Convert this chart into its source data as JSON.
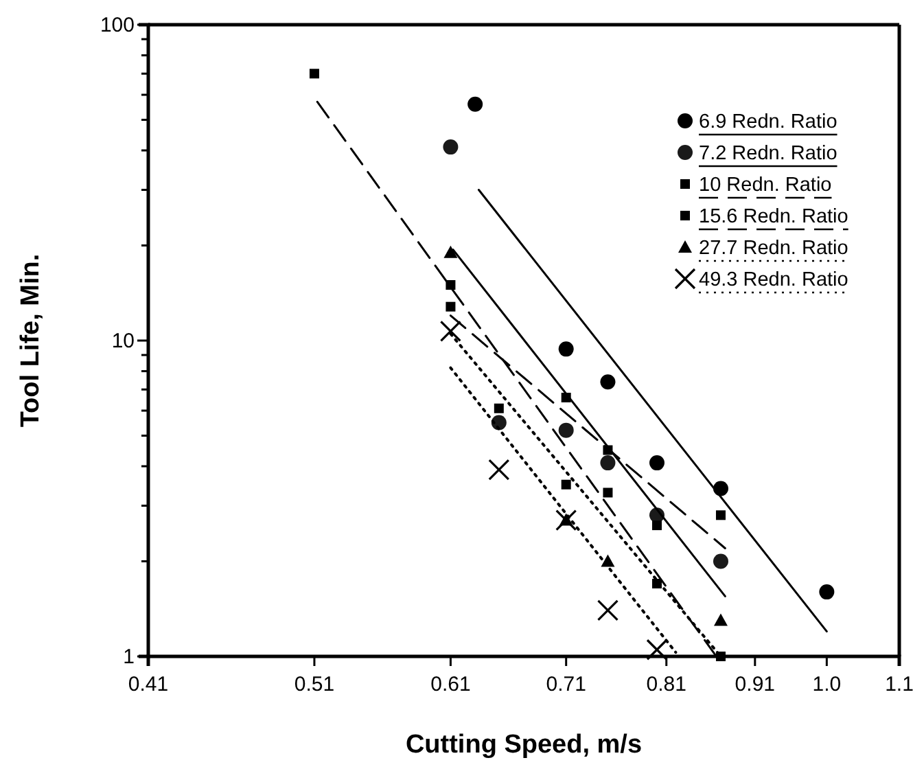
{
  "chart_data": {
    "type": "scatter",
    "xlabel": "Cutting Speed, m/s",
    "ylabel": "Tool Life, Min.",
    "log": "xy",
    "grid": false,
    "legend": "top right",
    "xlim": [
      0.41,
      1.1
    ],
    "xticks": [
      0.41,
      0.51,
      0.61,
      0.71,
      0.81,
      0.91,
      {
        "value": 1.0,
        "label": "1.0"
      },
      1.1
    ],
    "ylim": [
      1,
      100
    ],
    "yticks": [
      1,
      {
        "value": 2,
        "label": null
      },
      {
        "value": 3,
        "label": null
      },
      {
        "value": 4,
        "label": null
      },
      {
        "value": 5,
        "label": null
      },
      {
        "value": 6,
        "label": null
      },
      {
        "value": 7,
        "label": null
      },
      {
        "value": 8,
        "label": null
      },
      {
        "value": 9,
        "label": null
      },
      10,
      {
        "value": 20,
        "label": null
      },
      {
        "value": 30,
        "label": null
      },
      {
        "value": 40,
        "label": null
      },
      {
        "value": 50,
        "label": null
      },
      {
        "value": 60,
        "label": null
      },
      {
        "value": 70,
        "label": null
      },
      {
        "value": 80,
        "label": null
      },
      {
        "value": 90,
        "label": null
      },
      100
    ],
    "series": [
      {
        "name": "6.9 Redn. Ratio",
        "color": "#000000",
        "marker": "circle",
        "line_style": "solid",
        "x": [
          0.63,
          0.71,
          0.75,
          0.8,
          0.87,
          1.0
        ],
        "values": [
          56,
          9.4,
          7.4,
          4.1,
          3.4,
          1.6
        ]
      },
      {
        "name": "7.2 Redn. Ratio",
        "color": "#1a1a1a",
        "marker": "circle",
        "line_style": "solid",
        "x": [
          0.61,
          0.65,
          0.71,
          0.75,
          0.8,
          0.87
        ],
        "values": [
          41,
          5.5,
          5.2,
          4.1,
          2.8,
          2.0
        ]
      },
      {
        "name": "10 Redn. Ratio",
        "color": "#000000",
        "marker": "square",
        "line_style": "dashed",
        "x": [
          0.51,
          0.61,
          0.65,
          0.71,
          0.75,
          0.8,
          0.87
        ],
        "values": [
          70,
          15,
          6.1,
          3.5,
          3.3,
          1.7,
          1.0
        ]
      },
      {
        "name": "15.6 Redn. Ratio",
        "color": "#000000",
        "marker": "square",
        "line_style": "dashed",
        "x": [
          0.61,
          0.71,
          0.75,
          0.8,
          0.87
        ],
        "values": [
          12.8,
          6.6,
          4.5,
          2.6,
          2.8
        ]
      },
      {
        "name": "27.7 Redn. Ratio",
        "color": "#000000",
        "marker": "triangle",
        "line_style": "dotted",
        "x": [
          0.61,
          0.71,
          0.75,
          0.87
        ],
        "values": [
          19,
          2.7,
          2.0,
          1.3
        ]
      },
      {
        "name": "49.3 Redn. Ratio",
        "color": "#000000",
        "marker": "cross",
        "line_style": "dotted",
        "x": [
          0.61,
          0.65,
          0.71,
          0.75,
          0.8
        ],
        "values": [
          10.7,
          3.9,
          2.7,
          1.4,
          1.05
        ]
      },
      {
        "type": "line",
        "color": "#000000",
        "marker": "none",
        "line_style": "solid",
        "x": [
          0.633,
          1.0
        ],
        "values": [
          30,
          1.2
        ]
      },
      {
        "type": "line",
        "color": "#000000",
        "marker": "none",
        "line_style": "solid",
        "x": [
          0.612,
          0.875
        ],
        "values": [
          19.4,
          1.55
        ]
      },
      {
        "type": "line",
        "color": "#000000",
        "marker": "none",
        "line_style": "dashed",
        "x": [
          0.512,
          0.865
        ],
        "values": [
          57,
          1.0
        ]
      },
      {
        "type": "line",
        "color": "#000000",
        "marker": "none",
        "line_style": "dashed",
        "x": [
          0.61,
          0.875
        ],
        "values": [
          12,
          2.2
        ]
      },
      {
        "type": "line",
        "color": "#000000",
        "marker": "none",
        "line_style": "dotted",
        "x": [
          0.61,
          0.87
        ],
        "values": [
          10.5,
          1.0
        ]
      },
      {
        "type": "line",
        "color": "#000000",
        "marker": "none",
        "line_style": "dotted",
        "x": [
          0.61,
          0.82
        ],
        "values": [
          8.2,
          1.03
        ]
      }
    ]
  }
}
